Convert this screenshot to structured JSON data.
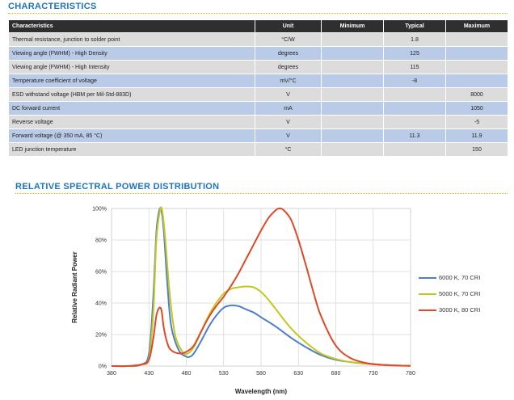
{
  "characteristics": {
    "title": "CHARACTERISTICS",
    "columns": [
      "Characteristics",
      "Unit",
      "Minimum",
      "Typical",
      "Maximum"
    ],
    "rows": [
      [
        "Thermal resistance, junction to solder point",
        "°C/W",
        "",
        "1.8",
        ""
      ],
      [
        "Viewing angle (FWHM) - High Density",
        "degrees",
        "",
        "125",
        ""
      ],
      [
        "Viewing angle (FWHM) - High Intensity",
        "degrees",
        "",
        "115",
        ""
      ],
      [
        "Temperature coefficient of voltage",
        "mV/°C",
        "",
        "-8",
        ""
      ],
      [
        "ESD withstand voltage (HBM per Mil-Std-883D)",
        "V",
        "",
        "",
        "8000"
      ],
      [
        "DC forward current",
        "mA",
        "",
        "",
        "1050"
      ],
      [
        "Reverse voltage",
        "V",
        "",
        "",
        "-5"
      ],
      [
        "Forward voltage (@ 350 mA, 85 °C)",
        "V",
        "",
        "11.3",
        "11.9"
      ],
      [
        "LED junction temperature",
        "°C",
        "",
        "",
        "150"
      ]
    ]
  },
  "spectral": {
    "title": "RELATIVE SPECTRAL POWER DISTRIBUTION"
  },
  "chart_data": {
    "type": "line",
    "title": "",
    "xlabel": "Wavelength (nm)",
    "ylabel": "Relative Radiant Power",
    "xlim": [
      380,
      780
    ],
    "ylim": [
      0,
      100
    ],
    "xticks": [
      380,
      430,
      480,
      530,
      580,
      630,
      680,
      730,
      780
    ],
    "yticks": [
      0,
      20,
      40,
      60,
      80,
      100
    ],
    "ytick_labels": [
      "0%",
      "20%",
      "40%",
      "60%",
      "80%",
      "100%"
    ],
    "grid": true,
    "legend": "right",
    "series": [
      {
        "name": "6000 K, 70 CRI",
        "color": "#4f7fcc",
        "x": [
          380,
          400,
          420,
          430,
          436,
          440,
          444,
          447,
          450,
          455,
          460,
          470,
          480,
          485,
          490,
          500,
          510,
          520,
          530,
          540,
          550,
          560,
          570,
          580,
          600,
          620,
          640,
          660,
          680,
          700,
          720,
          740,
          760,
          780
        ],
        "y": [
          0,
          0,
          1,
          8,
          45,
          85,
          99,
          98,
          85,
          50,
          25,
          10,
          6,
          6,
          8,
          16,
          25,
          32,
          37,
          38.5,
          38,
          36,
          34,
          31,
          25,
          18,
          12,
          7,
          4,
          2.5,
          1.5,
          0.8,
          0.4,
          0.2
        ]
      },
      {
        "name": "5000 K, 70 CRI",
        "color": "#c2c81e",
        "x": [
          380,
          400,
          420,
          430,
          436,
          440,
          445,
          448,
          452,
          458,
          465,
          475,
          482,
          490,
          500,
          510,
          520,
          530,
          540,
          550,
          560,
          570,
          580,
          590,
          600,
          620,
          640,
          660,
          680,
          700,
          720,
          740,
          760,
          780
        ],
        "y": [
          0,
          0,
          1,
          5,
          35,
          80,
          99,
          98,
          80,
          45,
          20,
          9,
          8,
          12,
          22,
          32,
          40,
          46,
          49,
          50,
          50.5,
          50,
          47,
          42,
          36,
          24,
          15,
          8,
          4.5,
          2.5,
          1.5,
          0.8,
          0.4,
          0.2
        ]
      },
      {
        "name": "3000 K, 80 CRI",
        "color": "#dd4a27",
        "x": [
          380,
          400,
          420,
          430,
          436,
          440,
          444,
          447,
          450,
          455,
          460,
          470,
          480,
          490,
          500,
          510,
          520,
          530,
          540,
          550,
          560,
          570,
          580,
          590,
          600,
          605,
          610,
          620,
          630,
          640,
          650,
          660,
          680,
          700,
          720,
          740,
          760,
          780
        ],
        "y": [
          0,
          0,
          1,
          4,
          18,
          32,
          37,
          35,
          24,
          14,
          10,
          8,
          9,
          13,
          22,
          31,
          38,
          44,
          51,
          59,
          68,
          77,
          86,
          94,
          99,
          100,
          99,
          93,
          80,
          64,
          47,
          32,
          13,
          5,
          2,
          0.8,
          0.3,
          0.1
        ]
      }
    ]
  }
}
